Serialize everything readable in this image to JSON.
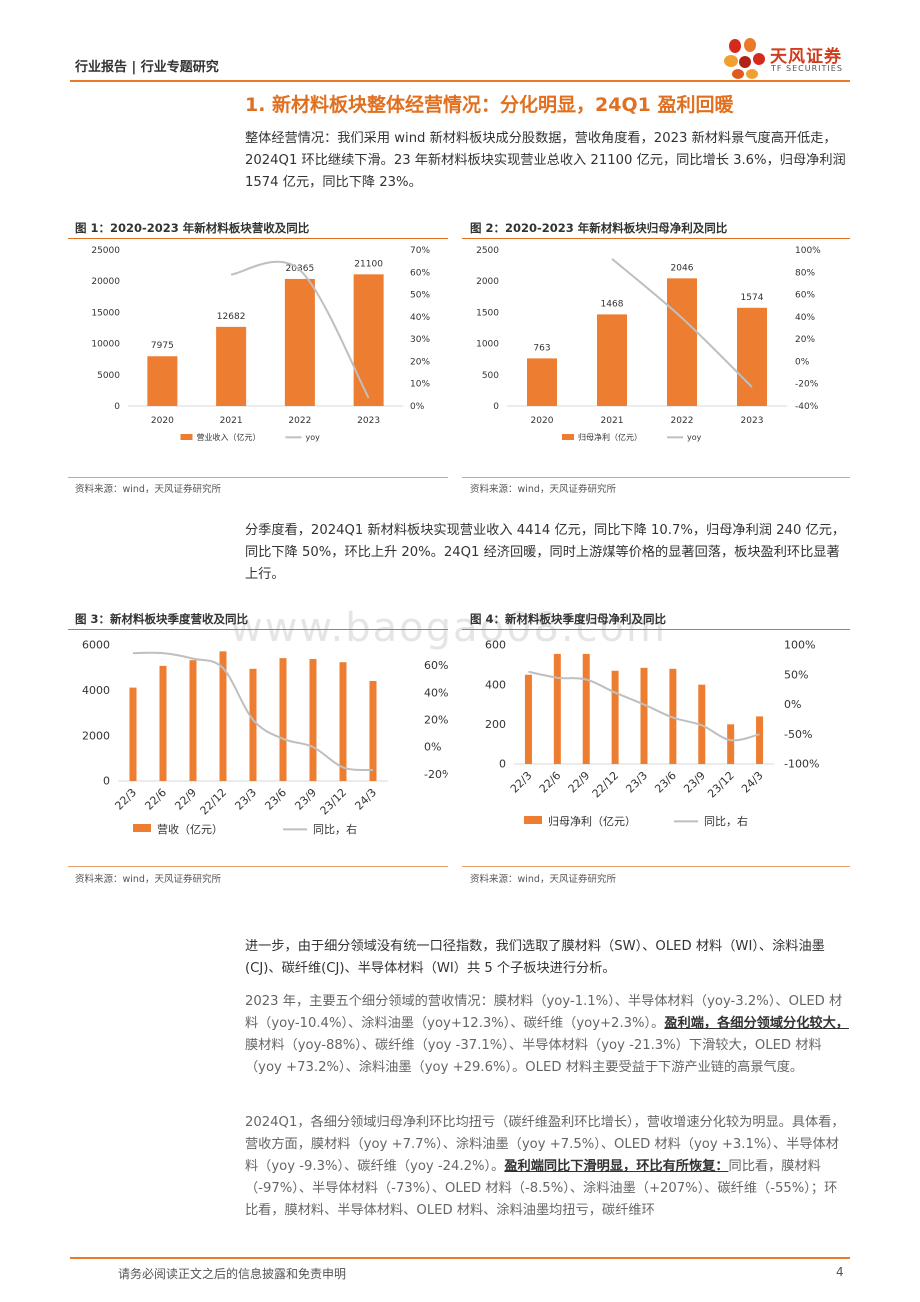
{
  "header": {
    "left_text": "行业报告 | 行业专题研究",
    "logo_cn": "天风证券",
    "logo_en": "TF SECURITIES"
  },
  "section_title": "1. 新材料板块整体经营情况：分化明显，24Q1 盈利回暖",
  "para1": "整体经营情况：我们采用 wind 新材料板块成分股数据，营收角度看，2023 新材料景气度高开低走，2024Q1 环比继续下滑。23 年新材料板块实现营业总收入 21100 亿元，同比增长 3.6%，归母净利润 1574 亿元，同比下降 23%。",
  "para2": "分季度看，2024Q1 新材料板块实现营业收入 4414 亿元，同比下降 10.7%，归母净利润 240 亿元，同比下降 50%，环比上升 20%。24Q1 经济回暖，同时上游煤等价格的显著回落，板块盈利环比显著上行。",
  "para3": "进一步，由于细分领域没有统一口径指数，我们选取了膜材料（SW）、OLED 材料（WI）、涂料油墨(CJ)、碳纤维(CJ)、半导体材料（WI）共 5 个子板块进行分析。",
  "para4_a": "2023 年，主要五个细分领域的营收情况：膜材料（yoy-1.1%）、半导体材料（yoy-3.2%）、OLED 材料（yoy-10.4%）、涂料油墨（yoy+12.3%）、碳纤维（yoy+2.3%）。",
  "para4_b": "盈利端，各细分领域分化较大，",
  "para4_c": "膜材料（yoy-88%）、碳纤维（yoy -37.1%）、半导体材料（yoy -21.3%）下滑较大，OLED 材料（yoy +73.2%）、涂料油墨（yoy +29.6%）。OLED 材料主要受益于下游产业链的高景气度。",
  "para5_a": "2024Q1，各细分领域归母净利环比均扭亏（碳纤维盈利环比增长），营收增速分化较为明显。具体看，营收方面，膜材料（yoy +7.7%）、涂料油墨（yoy +7.5%）、OLED 材料（yoy +3.1%）、半导体材料（yoy -9.3%）、碳纤维（yoy -24.2%）。",
  "para5_b": "盈利端同比下滑明显，环比有所恢复：",
  "para5_c": "同比看，膜材料（-97%）、半导体材料（-73%）、OLED 材料（-8.5%）、涂料油墨（+207%）、碳纤维（-55%）；环比看，膜材料、半导体材料、OLED 材料、涂料油墨均扭亏，碳纤维环",
  "watermark": "www.baogao08.com",
  "footer": {
    "disclaimer": "请务必阅读正文之后的信息披露和免责申明",
    "page": "4"
  },
  "colors": {
    "accent": "#e07020",
    "bar": "#ed7d31",
    "line": "#bfbfbf"
  },
  "chart_data": [
    {
      "id": "fig1",
      "type": "bar",
      "title": "图 1：2020-2023 年新材料板块营收及同比",
      "source": "资料来源：wind，天风证券研究所",
      "categories": [
        "2020",
        "2021",
        "2022",
        "2023"
      ],
      "series": [
        {
          "name": "营业收入（亿元）",
          "type": "bar",
          "axis": "left",
          "values": [
            7975,
            12682,
            20365,
            21100
          ],
          "labels": [
            "7975",
            "12682",
            "20365",
            "21100"
          ]
        },
        {
          "name": "yoy",
          "type": "line",
          "axis": "right",
          "values": [
            null,
            59,
            61,
            3.6
          ]
        }
      ],
      "left_ticks": [
        "0",
        "5000",
        "10000",
        "15000",
        "20000",
        "25000"
      ],
      "left_range": [
        0,
        25000
      ],
      "right_ticks": [
        "0%",
        "10%",
        "20%",
        "30%",
        "40%",
        "50%",
        "60%",
        "70%"
      ],
      "right_range": [
        0,
        70
      ]
    },
    {
      "id": "fig2",
      "type": "bar",
      "title": "图 2：2020-2023 年新材料板块归母净利及同比",
      "source": "资料来源：wind，天风证券研究所",
      "categories": [
        "2020",
        "2021",
        "2022",
        "2023"
      ],
      "series": [
        {
          "name": "归母净利（亿元）",
          "type": "bar",
          "axis": "left",
          "values": [
            763,
            1468,
            2046,
            1574
          ],
          "labels": [
            "763",
            "1468",
            "2046",
            "1574"
          ]
        },
        {
          "name": "yoy",
          "type": "line",
          "axis": "right",
          "values": [
            null,
            92,
            39,
            -23
          ]
        }
      ],
      "left_ticks": [
        "0",
        "500",
        "1000",
        "1500",
        "2000",
        "2500"
      ],
      "left_range": [
        0,
        2500
      ],
      "right_ticks": [
        "-40%",
        "-20%",
        "0%",
        "20%",
        "40%",
        "60%",
        "80%",
        "100%"
      ],
      "right_range": [
        -40,
        100
      ]
    },
    {
      "id": "fig3",
      "type": "bar",
      "title": "图 3：新材料板块季度营收及同比",
      "source": "资料来源：wind，天风证券研究所",
      "categories": [
        "22/3",
        "22/6",
        "22/9",
        "22/12",
        "23/3",
        "23/6",
        "23/9",
        "23/12",
        "24/3"
      ],
      "series": [
        {
          "name": "营收（亿元）",
          "type": "bar",
          "axis": "left",
          "values": [
            4120,
            5080,
            5330,
            5720,
            4950,
            5420,
            5380,
            5240,
            4414
          ]
        },
        {
          "name": "同比，右",
          "type": "line",
          "axis": "right",
          "values": [
            69,
            69,
            65,
            58,
            20,
            6,
            0,
            -15,
            -17
          ]
        }
      ],
      "left_ticks": [
        "0",
        "2000",
        "4000",
        "6000"
      ],
      "left_range": [
        0,
        6000
      ],
      "right_ticks": [
        "-20%",
        "0%",
        "20%",
        "40%",
        "60%"
      ],
      "right_range": [
        -25,
        75
      ]
    },
    {
      "id": "fig4",
      "type": "bar",
      "title": "图 4：新材料板块季度归母净利及同比",
      "source": "资料来源：wind，天风证券研究所",
      "categories": [
        "22/3",
        "22/6",
        "22/9",
        "22/12",
        "23/3",
        "23/6",
        "23/9",
        "23/12",
        "24/3"
      ],
      "series": [
        {
          "name": "归母净利（亿元）",
          "type": "bar",
          "axis": "left",
          "values": [
            450,
            555,
            555,
            470,
            485,
            480,
            400,
            200,
            240
          ]
        },
        {
          "name": "同比，右",
          "type": "line",
          "axis": "right",
          "values": [
            55,
            45,
            42,
            20,
            0,
            -22,
            -35,
            -60,
            -50
          ]
        }
      ],
      "left_ticks": [
        "0",
        "200",
        "400",
        "600"
      ],
      "left_range": [
        0,
        600
      ],
      "right_ticks": [
        "-100%",
        "-50%",
        "0%",
        "50%",
        "100%"
      ],
      "right_range": [
        -100,
        100
      ]
    }
  ]
}
